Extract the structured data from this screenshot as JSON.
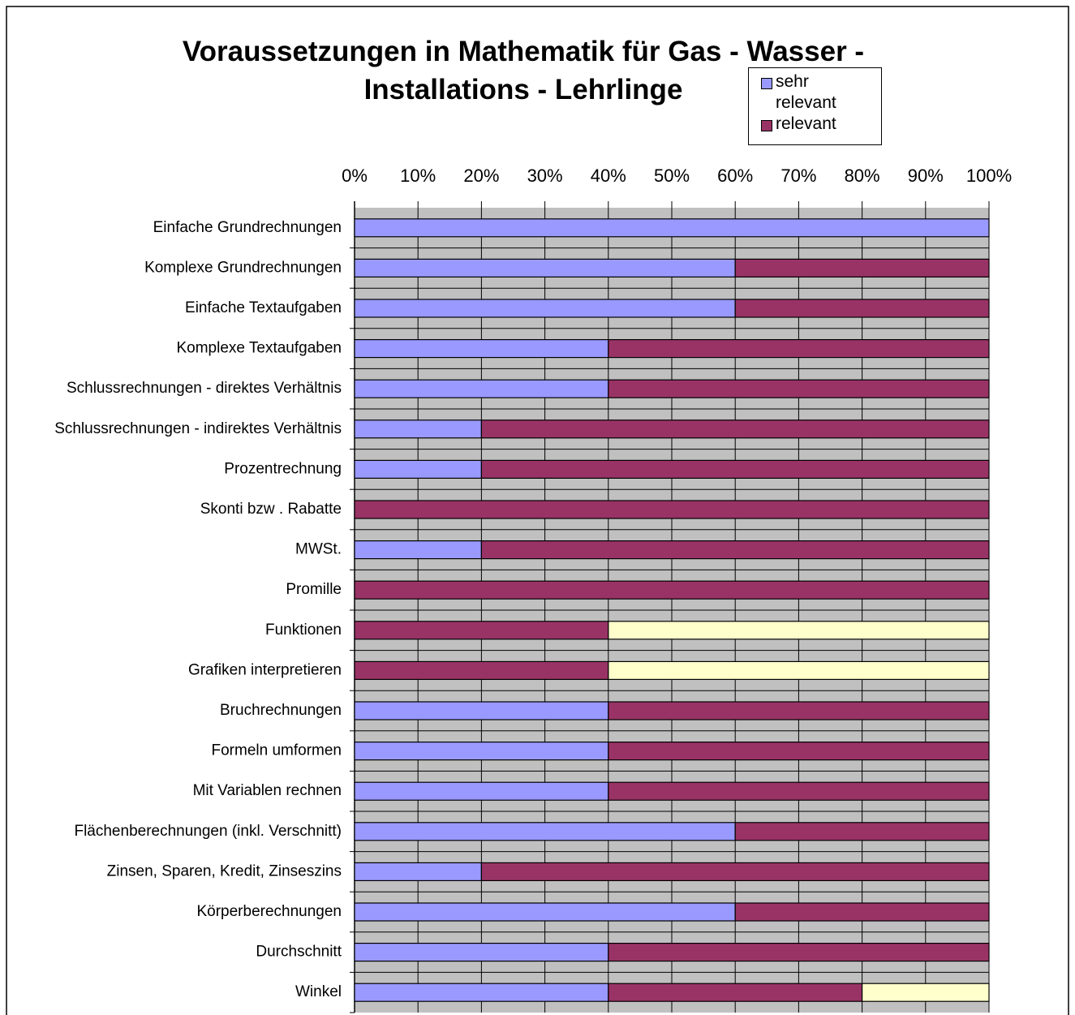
{
  "chart_data": {
    "type": "stacked-bar-horizontal",
    "title": "Voraussetzungen in Mathematik für Gas - Wasser - Installations - Lehrlinge",
    "categories": [
      "Einfache Grundrechnungen",
      "Komplexe Grundrechnungen",
      "Einfache Textaufgaben",
      "Komplexe Textaufgaben",
      "Schlussrechnungen - direktes Verhältnis",
      "Schlussrechnungen - indirektes Verhältnis",
      "Prozentrechnung",
      "Skonti bzw . Rabatte",
      "MWSt.",
      "Promille",
      "Funktionen",
      "Grafiken interpretieren",
      "Bruchrechnungen",
      "Formeln umformen",
      "Mit Variablen rechnen",
      "Flächenberechnungen (inkl. Verschnitt)",
      "Zinsen, Sparen, Kredit, Zinseszins",
      "Körperberechnungen",
      "Durchschnitt",
      "Winkel"
    ],
    "series": [
      {
        "name": "sehr relevant",
        "color": "#9999ff",
        "values": [
          100,
          60,
          60,
          40,
          40,
          20,
          20,
          0,
          20,
          0,
          0,
          0,
          40,
          40,
          40,
          60,
          20,
          60,
          40,
          40
        ]
      },
      {
        "name": "relevant",
        "color": "#993366",
        "values": [
          0,
          40,
          40,
          60,
          60,
          80,
          80,
          100,
          80,
          100,
          40,
          40,
          60,
          60,
          60,
          40,
          80,
          40,
          60,
          40
        ]
      },
      {
        "name": null,
        "color": "#ffffcc",
        "values": [
          0,
          0,
          0,
          0,
          0,
          0,
          0,
          0,
          0,
          0,
          60,
          60,
          0,
          0,
          0,
          0,
          0,
          0,
          0,
          20
        ]
      }
    ],
    "xlim": [
      0,
      100
    ],
    "xticks": [
      {
        "value": 0,
        "label": "0%"
      },
      {
        "value": 10,
        "label": "10%"
      },
      {
        "value": 20,
        "label": "20%"
      },
      {
        "value": 30,
        "label": "30%"
      },
      {
        "value": 40,
        "label": "40%"
      },
      {
        "value": 50,
        "label": "50%"
      },
      {
        "value": 60,
        "label": "60%"
      },
      {
        "value": 70,
        "label": "70%"
      },
      {
        "value": 80,
        "label": "80%"
      },
      {
        "value": 90,
        "label": "90%"
      },
      {
        "value": 100,
        "label": "100%"
      }
    ],
    "grid": true,
    "legend": "top-right"
  }
}
